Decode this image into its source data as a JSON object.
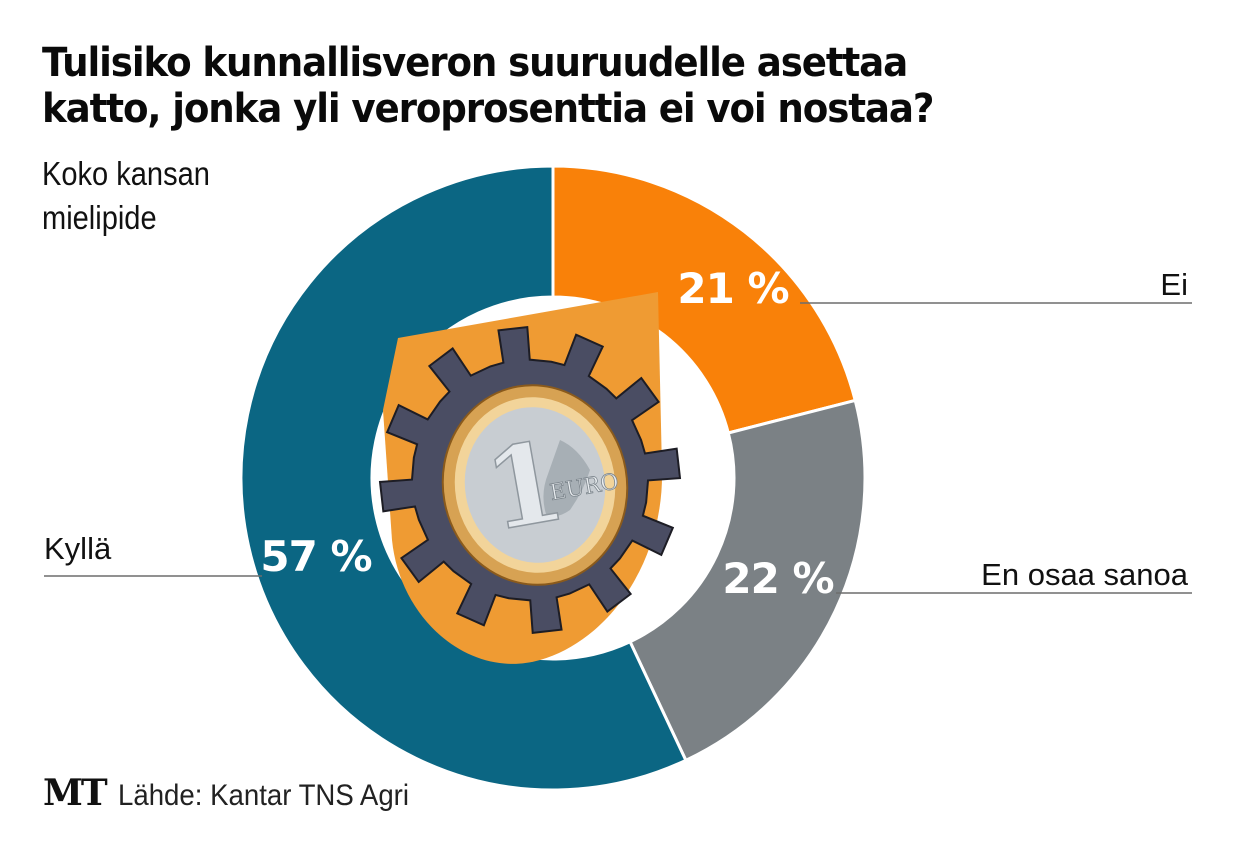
{
  "title_lines": [
    "Tulisiko kunnallisveron suuruudelle asettaa",
    "katto, jonka yli veroprosenttia ei voi nostaa?"
  ],
  "subtitle_lines": [
    "Koko kansan",
    "mielipide"
  ],
  "source": {
    "logo": "MT",
    "text": "Lähde: Kantar TNS Agri"
  },
  "center_emblem": {
    "description": "orange shield with dark gear and 1 euro coin",
    "coin_text": "EURO",
    "coin_value": "1",
    "colors": {
      "shield": "#ef9b33",
      "gear": "#4a4d63",
      "coin_ring": "#d9a659",
      "coin_center": "#c7ccd1"
    }
  },
  "chart_data": {
    "type": "pie",
    "variant": "donut",
    "title": "Tulisiko kunnallisveron suuruudelle asettaa katto, jonka yli veroprosenttia ei voi nostaa?",
    "subtitle": "Koko kansan mielipide",
    "unit": "%",
    "start_angle": "top, clockwise",
    "slices": [
      {
        "label": "Ei",
        "value": 21,
        "value_label": "21 %",
        "color": "#f98109",
        "legend_side": "right"
      },
      {
        "label": "En osaa sanoa",
        "value": 22,
        "value_label": "22 %",
        "color": "#7b8185",
        "legend_side": "right"
      },
      {
        "label": "Kyllä",
        "value": 57,
        "value_label": "57 %",
        "color": "#0b6683",
        "legend_side": "left"
      }
    ],
    "source": "Lähde: Kantar TNS Agri"
  }
}
